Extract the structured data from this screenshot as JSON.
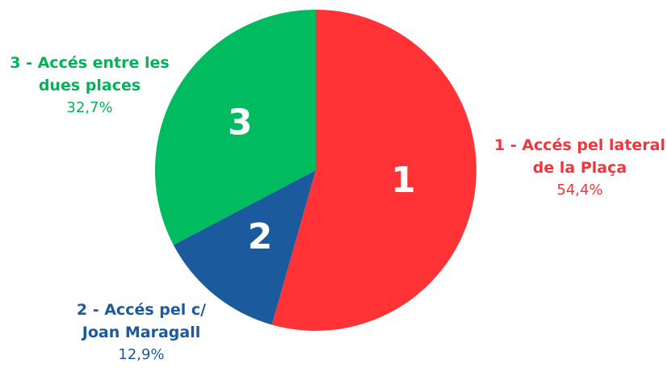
{
  "chart_data": {
    "type": "pie",
    "categories": [
      "1 - Accés pel lateral de la Plaça",
      "2 - Accés pel c/ Joan Maragall",
      "3 - Accés entre les dues places"
    ],
    "inner_labels": [
      "1",
      "2",
      "3"
    ],
    "values": [
      54.4,
      12.9,
      32.7
    ],
    "value_labels": [
      "54,4%",
      "12,9%",
      "32,7%"
    ],
    "colors": [
      "#ff3336",
      "#1b5a9c",
      "#00bb5f"
    ],
    "label_colors": [
      "#f4333a",
      "#1b5a9c",
      "#00b359"
    ]
  }
}
